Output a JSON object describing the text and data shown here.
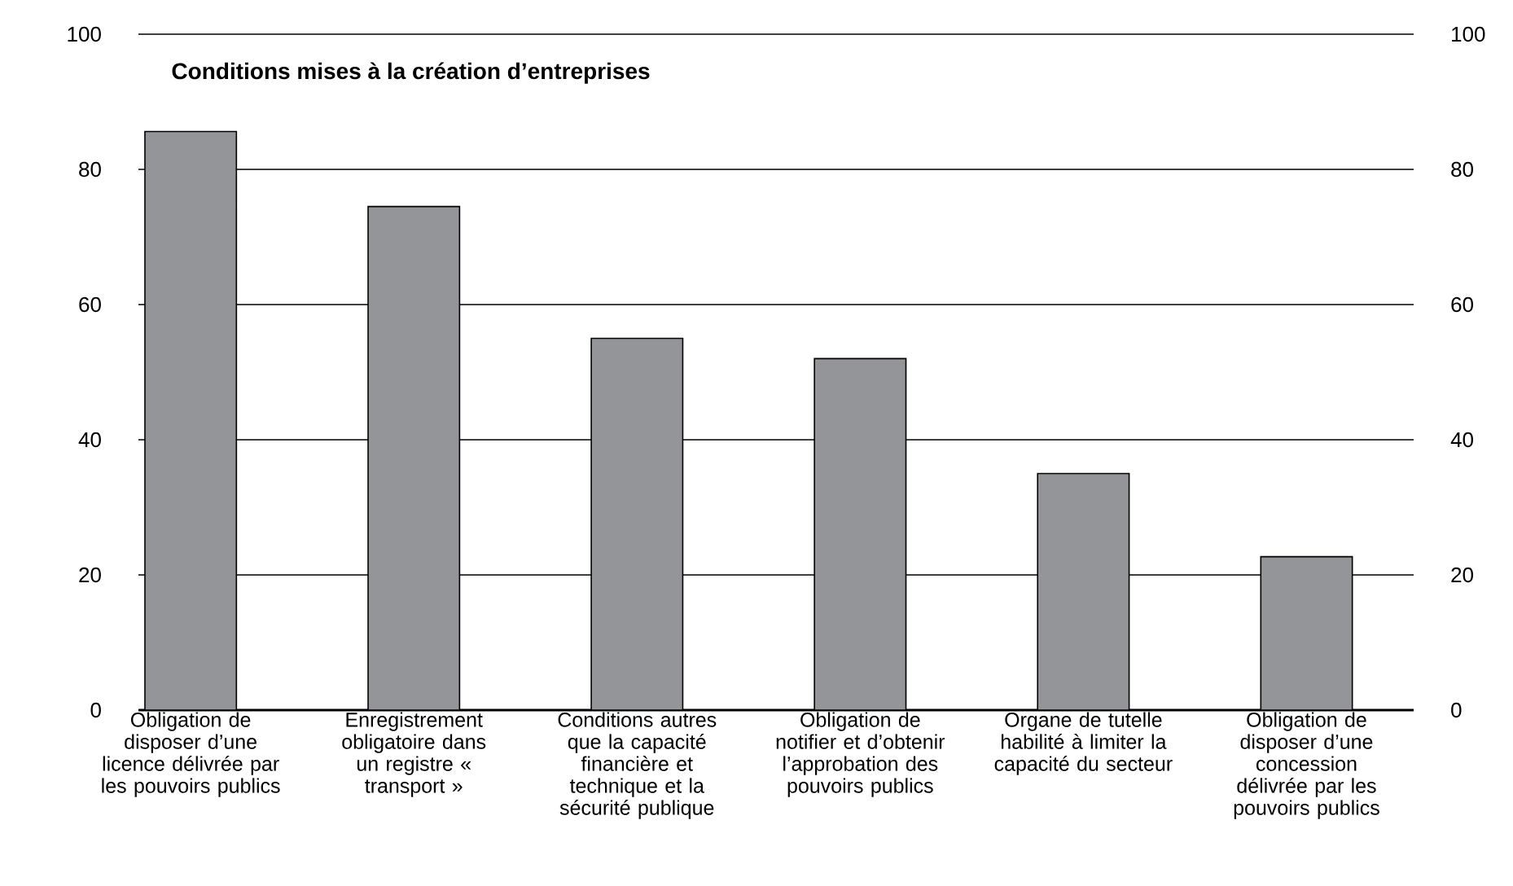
{
  "chart_data": {
    "type": "bar",
    "title": "Conditions mises à la création d’entreprises",
    "categories": [
      "Obligation de disposer d’une licence délivrée par les pouvoirs publics",
      "Enregistrement obligatoire dans un registre « transport »",
      "Conditions autres que la capacité financière et technique et la sécurité publique",
      "Obligation de notifier et d’obtenir l’approbation des pouvoirs publics",
      "Organe de tutelle habilité à limiter la capacité du secteur",
      "Obligation de disposer d’une concession délivrée par les pouvoirs publics"
    ],
    "values": [
      85.6,
      74.5,
      55,
      52,
      35,
      22.7
    ],
    "color": "#939598",
    "ylim": [
      0,
      100
    ],
    "yticks": [
      0,
      20,
      40,
      60,
      80,
      100
    ],
    "y2lim": [
      0,
      100
    ],
    "y2ticks": [
      0,
      20,
      40,
      60,
      80,
      100
    ],
    "grid": "y"
  }
}
